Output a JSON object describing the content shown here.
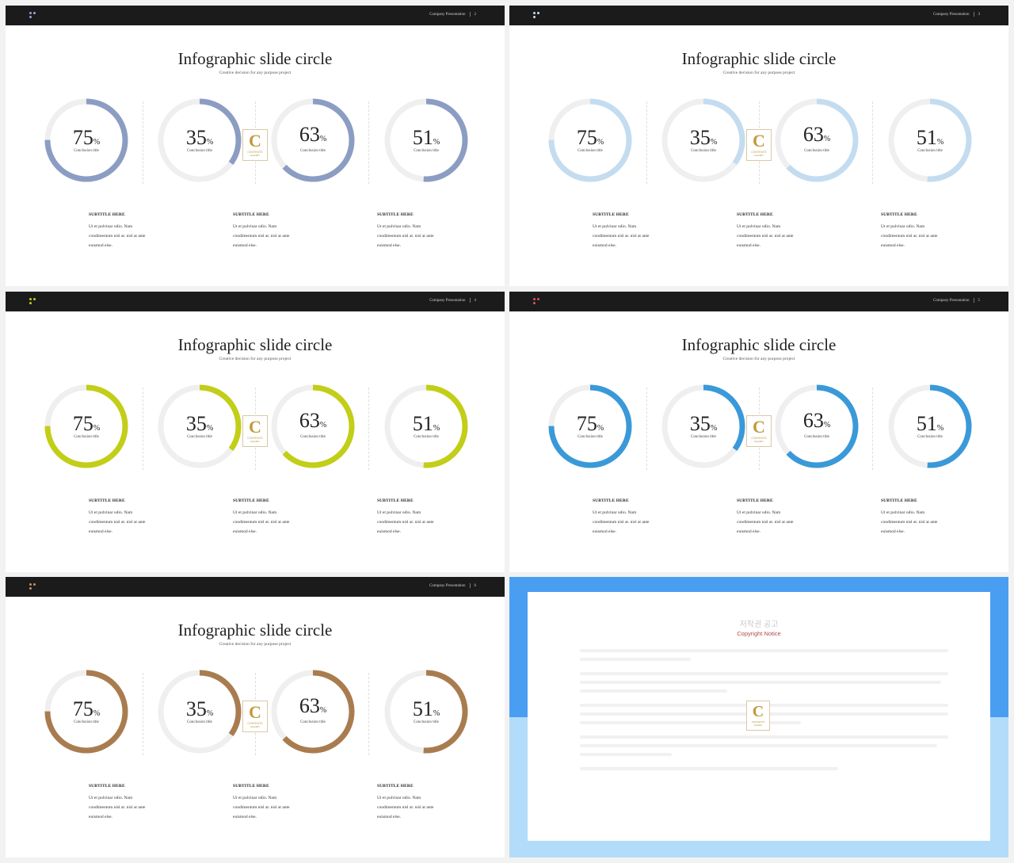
{
  "deck": {
    "company_label": "Company Presentation",
    "title": "Infographic slide circle",
    "subtitle": "Creative decision for any purpose project",
    "rings": [
      {
        "value": "75",
        "percent": 0.75,
        "unit": "%",
        "caption": "Conclusion title"
      },
      {
        "value": "35",
        "percent": 0.35,
        "unit": "%",
        "caption": "Conclusion title"
      },
      {
        "value": "63",
        "percent": 0.63,
        "unit": "%",
        "caption": "Conclusion title"
      },
      {
        "value": "51",
        "percent": 0.51,
        "unit": "%",
        "caption": "Conclusion title"
      }
    ],
    "text_blocks": [
      {
        "heading": "SUBTITLE HERE",
        "lines": [
          "Ut et pulvinar odio. Nam",
          "condimentum nisl at. nisl at ante",
          "euismod else."
        ]
      },
      {
        "heading": "SUBTITLE HERE",
        "lines": [
          "Ut et pulvinar odio. Nam",
          "condimentum nisl at. nisl at ante",
          "euismod else."
        ]
      },
      {
        "heading": "SUBTITLE HERE",
        "lines": [
          "Ut et pulvinar odio. Nam",
          "condimentum nisl at. nisl at ante",
          "euismod else."
        ]
      }
    ],
    "logo": {
      "letter": "C",
      "word": "CONTENTS",
      "tag": "GALLERY"
    }
  },
  "slides": [
    {
      "page": "2",
      "accent": "#8c9dc3",
      "dot_colors": [
        "#8fa8d8",
        "#8fa8d8",
        "#8fa8d8"
      ]
    },
    {
      "page": "3",
      "accent": "#c4dcf0",
      "dot_colors": [
        "#c9def2",
        "#c9def2",
        "#c9def2"
      ]
    },
    {
      "page": "4",
      "accent": "#c2ce17",
      "dot_colors": [
        "#c6cf1e",
        "#c6cf1e",
        "#c6cf1e"
      ]
    },
    {
      "page": "5",
      "accent": "#3a99d8",
      "dot_colors": [
        "#e25454",
        "#e25454",
        "#e25454"
      ]
    },
    {
      "page": "6",
      "accent": "#a97c4f",
      "dot_colors": [
        "#c3925d",
        "#c3925d",
        "#c3925d"
      ]
    }
  ],
  "copyright": {
    "title": "저작권 공고",
    "subtitle": "Copyright Notice"
  },
  "colors": {
    "track": "#efefef",
    "topbar": "#1b1b1b"
  }
}
